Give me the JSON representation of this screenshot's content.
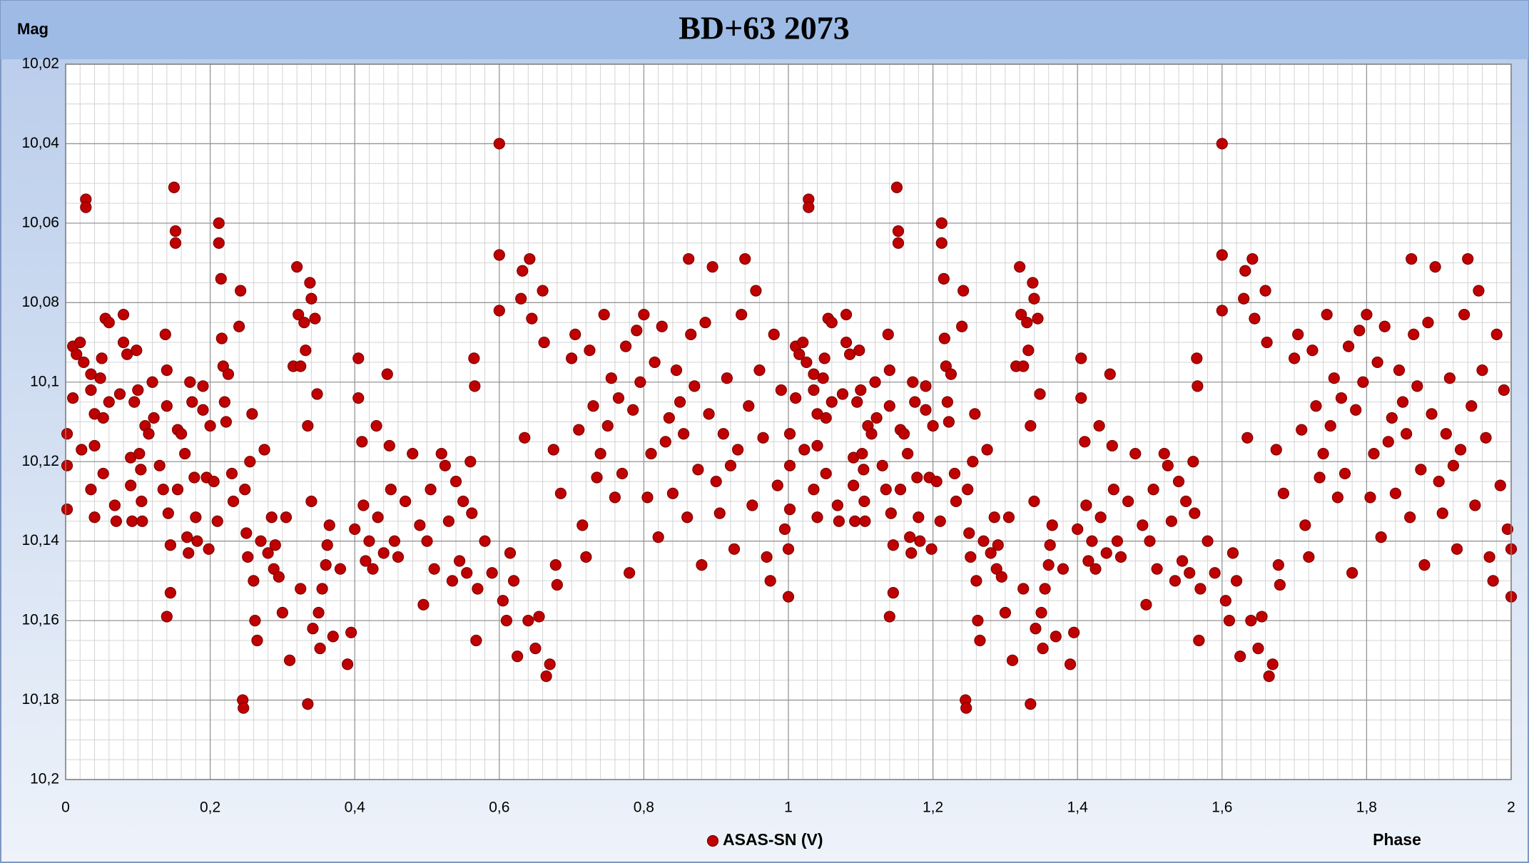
{
  "chart_data": {
    "type": "scatter",
    "title": "BD+63 2073",
    "ylabel": "Mag",
    "xlabel": "Phase",
    "xlim": [
      0,
      2
    ],
    "ylim": [
      10.2,
      10.02
    ],
    "grid": true,
    "minor_grid": true,
    "xticks": [
      0,
      {
        "value": 0.2,
        "label": "0,2"
      },
      {
        "value": 0.4,
        "label": "0,4"
      },
      {
        "value": 0.6,
        "label": "0,6"
      },
      {
        "value": 0.8,
        "label": "0,8"
      },
      1,
      {
        "value": 1.2,
        "label": "1,2"
      },
      {
        "value": 1.4,
        "label": "1,4"
      },
      {
        "value": 1.6,
        "label": "1,6"
      },
      {
        "value": 1.8,
        "label": "1,8"
      },
      2
    ],
    "yticks": [
      {
        "value": 10.02,
        "label": "10,02"
      },
      {
        "value": 10.04,
        "label": "10,04"
      },
      {
        "value": 10.06,
        "label": "10,06"
      },
      {
        "value": 10.08,
        "label": "10,08"
      },
      {
        "value": 10.1,
        "label": "10,1"
      },
      {
        "value": 10.12,
        "label": "10,12"
      },
      {
        "value": 10.14,
        "label": "10,14"
      },
      {
        "value": 10.16,
        "label": "10,16"
      },
      {
        "value": 10.18,
        "label": "10,18"
      },
      {
        "value": 10.2,
        "label": "10,2"
      }
    ],
    "legend": "bottom",
    "x": [
      0.002,
      0.002,
      0.002,
      0.01,
      0.01,
      0.015,
      0.02,
      0.022,
      0.025,
      0.028,
      0.028,
      0.035,
      0.035,
      0.04,
      0.04,
      0.035,
      0.04,
      0.048,
      0.05,
      0.052,
      0.052,
      0.055,
      0.06,
      0.06,
      0.068,
      0.07,
      0.075,
      0.08,
      0.08,
      0.085,
      0.09,
      0.09,
      0.092,
      0.095,
      0.098,
      0.1,
      0.102,
      0.104,
      0.105,
      0.106,
      0.11,
      0.115,
      0.12,
      0.122,
      0.13,
      0.135,
      0.138,
      0.14,
      0.14,
      0.142,
      0.145,
      0.14,
      0.145,
      0.15,
      0.152,
      0.152,
      0.155,
      0.155,
      0.16,
      0.165,
      0.168,
      0.17,
      0.172,
      0.175,
      0.178,
      0.18,
      0.182,
      0.19,
      0.19,
      0.195,
      0.198,
      0.2,
      0.205,
      0.21,
      0.212,
      0.212,
      0.215,
      0.216,
      0.218,
      0.22,
      0.222,
      0.225,
      0.23,
      0.232,
      0.24,
      0.242,
      0.245,
      0.246,
      0.248,
      0.25,
      0.252,
      0.255,
      0.258,
      0.26,
      0.262,
      0.265,
      0.27,
      0.275,
      0.28,
      0.285,
      0.288,
      0.29,
      0.295,
      0.3,
      0.305,
      0.31,
      0.315,
      0.32,
      0.322,
      0.325,
      0.325,
      0.33,
      0.332,
      0.335,
      0.335,
      0.338,
      0.34,
      0.34,
      0.342,
      0.345,
      0.348,
      0.35,
      0.352,
      0.355,
      0.36,
      0.362,
      0.365,
      0.37,
      0.38,
      0.39,
      0.395,
      0.4,
      0.405,
      0.405,
      0.41,
      0.412,
      0.415,
      0.42,
      0.425,
      0.43,
      0.432,
      0.44,
      0.445,
      0.448,
      0.45,
      0.455,
      0.46,
      0.47,
      0.48,
      0.49,
      0.495,
      0.5,
      0.505,
      0.51,
      0.52,
      0.525,
      0.53,
      0.535,
      0.54,
      0.545,
      0.55,
      0.555,
      0.56,
      0.562,
      0.565,
      0.566,
      0.568,
      0.57,
      0.58,
      0.59,
      0.6,
      0.6,
      0.6,
      0.605,
      0.61,
      0.615,
      0.62,
      0.625,
      0.63,
      0.632,
      0.635,
      0.64,
      0.642,
      0.645,
      0.65,
      0.655,
      0.66,
      0.662,
      0.665,
      0.67,
      0.675,
      0.678,
      0.68,
      0.685,
      0.7,
      0.705,
      0.71,
      0.715,
      0.72,
      0.725,
      0.73,
      0.735,
      0.74,
      0.745,
      0.75,
      0.755,
      0.76,
      0.765,
      0.77,
      0.775,
      0.78,
      0.785,
      0.79,
      0.795,
      0.8,
      0.805,
      0.81,
      0.815,
      0.82,
      0.825,
      0.83,
      0.835,
      0.84,
      0.845,
      0.85,
      0.855,
      0.86,
      0.862,
      0.865,
      0.87,
      0.875,
      0.88,
      0.885,
      0.89,
      0.895,
      0.9,
      0.905,
      0.91,
      0.915,
      0.92,
      0.925,
      0.93,
      0.935,
      0.94,
      0.945,
      0.95,
      0.955,
      0.96,
      0.965,
      0.97,
      0.975,
      0.98,
      0.985,
      0.99,
      0.995,
      1.0,
      1.0,
      1.002,
      1.002,
      1.002,
      1.01,
      1.01,
      1.015,
      1.02,
      1.022,
      1.025,
      1.028,
      1.028,
      1.035,
      1.035,
      1.04,
      1.04,
      1.035,
      1.04,
      1.048,
      1.05,
      1.052,
      1.052,
      1.055,
      1.06,
      1.06,
      1.068,
      1.07,
      1.075,
      1.08,
      1.08,
      1.085,
      1.09,
      1.09,
      1.092,
      1.095,
      1.098,
      1.1,
      1.102,
      1.104,
      1.105,
      1.106,
      1.11,
      1.115,
      1.12,
      1.122,
      1.13,
      1.135,
      1.138,
      1.14,
      1.14,
      1.142,
      1.145,
      1.14,
      1.145,
      1.15,
      1.152,
      1.152,
      1.155,
      1.155,
      1.16,
      1.165,
      1.168,
      1.17,
      1.172,
      1.175,
      1.178,
      1.18,
      1.182,
      1.19,
      1.19,
      1.195,
      1.198,
      1.2,
      1.205,
      1.21,
      1.212,
      1.212,
      1.215,
      1.216,
      1.218,
      1.22,
      1.222,
      1.225,
      1.23,
      1.232,
      1.24,
      1.242,
      1.245,
      1.246,
      1.248,
      1.25,
      1.252,
      1.255,
      1.258,
      1.26,
      1.262,
      1.265,
      1.27,
      1.275,
      1.28,
      1.285,
      1.288,
      1.29,
      1.295,
      1.3,
      1.305,
      1.31,
      1.315,
      1.32,
      1.322,
      1.325,
      1.325,
      1.33,
      1.332,
      1.335,
      1.335,
      1.338,
      1.34,
      1.34,
      1.342,
      1.345,
      1.348,
      1.35,
      1.352,
      1.355,
      1.36,
      1.362,
      1.365,
      1.37,
      1.38,
      1.39,
      1.395,
      1.4,
      1.405,
      1.405,
      1.41,
      1.412,
      1.415,
      1.42,
      1.425,
      1.43,
      1.432,
      1.44,
      1.445,
      1.448,
      1.45,
      1.455,
      1.46,
      1.47,
      1.48,
      1.49,
      1.495,
      1.5,
      1.505,
      1.51,
      1.52,
      1.525,
      1.53,
      1.535,
      1.54,
      1.545,
      1.55,
      1.555,
      1.56,
      1.562,
      1.565,
      1.566,
      1.568,
      1.57,
      1.58,
      1.59,
      1.6,
      1.6,
      1.6,
      1.605,
      1.61,
      1.615,
      1.62,
      1.625,
      1.63,
      1.632,
      1.635,
      1.64,
      1.642,
      1.645,
      1.65,
      1.655,
      1.66,
      1.662,
      1.665,
      1.67,
      1.675,
      1.678,
      1.68,
      1.685,
      1.7,
      1.705,
      1.71,
      1.715,
      1.72,
      1.725,
      1.73,
      1.735,
      1.74,
      1.745,
      1.75,
      1.755,
      1.76,
      1.765,
      1.77,
      1.775,
      1.78,
      1.785,
      1.79,
      1.795,
      1.8,
      1.805,
      1.81,
      1.815,
      1.82,
      1.825,
      1.83,
      1.835,
      1.84,
      1.845,
      1.85,
      1.855,
      1.86,
      1.862,
      1.865,
      1.87,
      1.875,
      1.88,
      1.885,
      1.89,
      1.895,
      1.9,
      1.905,
      1.91,
      1.915,
      1.92,
      1.925,
      1.93,
      1.935,
      1.94,
      1.945,
      1.95,
      1.955,
      1.96,
      1.965,
      1.97,
      1.975,
      1.98,
      1.985,
      1.99,
      1.995,
      2.0,
      2.0
    ],
    "series": [
      {
        "name": "ASAS-SN (V)",
        "color": "#c00000",
        "values": [
          10.113,
          10.121,
          10.132,
          10.091,
          10.104,
          10.093,
          10.09,
          10.117,
          10.095,
          10.054,
          10.056,
          10.098,
          10.102,
          10.108,
          10.116,
          10.127,
          10.134,
          10.099,
          10.094,
          10.109,
          10.123,
          10.084,
          10.085,
          10.105,
          10.131,
          10.135,
          10.103,
          10.09,
          10.083,
          10.093,
          10.119,
          10.126,
          10.135,
          10.105,
          10.092,
          10.102,
          10.118,
          10.122,
          10.13,
          10.135,
          10.111,
          10.113,
          10.1,
          10.109,
          10.121,
          10.127,
          10.088,
          10.097,
          10.106,
          10.133,
          10.141,
          10.159,
          10.153,
          10.051,
          10.062,
          10.065,
          10.112,
          10.127,
          10.113,
          10.118,
          10.139,
          10.143,
          10.1,
          10.105,
          10.124,
          10.134,
          10.14,
          10.101,
          10.107,
          10.124,
          10.142,
          10.111,
          10.125,
          10.135,
          10.06,
          10.065,
          10.074,
          10.089,
          10.096,
          10.105,
          10.11,
          10.098,
          10.123,
          10.13,
          10.086,
          10.077,
          10.18,
          10.182,
          10.127,
          10.138,
          10.144,
          10.12,
          10.108,
          10.15,
          10.16,
          10.165,
          10.14,
          10.117,
          10.143,
          10.134,
          10.147,
          10.141,
          10.149,
          10.158,
          10.134,
          10.17,
          10.096,
          10.071,
          10.083,
          10.096,
          10.152,
          10.085,
          10.092,
          10.111,
          10.181,
          10.075,
          10.079,
          10.13,
          10.162,
          10.084,
          10.103,
          10.158,
          10.167,
          10.152,
          10.146,
          10.141,
          10.136,
          10.164,
          10.147,
          10.171,
          10.163,
          10.137,
          10.094,
          10.104,
          10.115,
          10.131,
          10.145,
          10.14,
          10.147,
          10.111,
          10.134,
          10.143,
          10.098,
          10.116,
          10.127,
          10.14,
          10.144,
          10.13,
          10.118,
          10.136,
          10.156,
          10.14,
          10.127,
          10.147,
          10.118,
          10.121,
          10.135,
          10.15,
          10.125,
          10.145,
          10.13,
          10.148,
          10.12,
          10.133,
          10.094,
          10.101,
          10.165,
          10.152,
          10.14,
          10.148,
          10.04,
          10.082,
          10.068,
          10.155,
          10.16,
          10.143,
          10.15,
          10.169,
          10.079,
          10.072,
          10.114,
          10.16,
          10.069,
          10.084,
          10.167,
          10.159,
          10.077,
          10.09,
          10.174,
          10.171,
          10.117,
          10.146,
          10.151,
          10.128,
          10.094,
          10.088,
          10.112,
          10.136,
          10.144,
          10.092,
          10.106,
          10.124,
          10.118,
          10.083,
          10.111,
          10.099,
          10.129,
          10.104,
          10.123,
          10.091,
          10.148,
          10.107,
          10.087,
          10.1,
          10.083,
          10.129,
          10.118,
          10.095,
          10.139,
          10.086,
          10.115,
          10.109,
          10.128,
          10.097,
          10.105,
          10.113,
          10.134,
          10.069,
          10.088,
          10.101,
          10.122,
          10.146,
          10.085,
          10.108,
          10.071,
          10.125,
          10.133,
          10.113,
          10.099,
          10.121,
          10.142,
          10.117,
          10.083,
          10.069,
          10.106,
          10.131,
          10.077,
          10.097,
          10.114,
          10.144,
          10.15,
          10.088,
          10.126,
          10.102,
          10.137,
          10.154,
          10.142,
          10.113,
          10.121,
          10.132,
          10.091,
          10.104,
          10.093,
          10.09,
          10.117,
          10.095,
          10.054,
          10.056,
          10.098,
          10.102,
          10.108,
          10.116,
          10.127,
          10.134,
          10.099,
          10.094,
          10.109,
          10.123,
          10.084,
          10.085,
          10.105,
          10.131,
          10.135,
          10.103,
          10.09,
          10.083,
          10.093,
          10.119,
          10.126,
          10.135,
          10.105,
          10.092,
          10.102,
          10.118,
          10.122,
          10.13,
          10.135,
          10.111,
          10.113,
          10.1,
          10.109,
          10.121,
          10.127,
          10.088,
          10.097,
          10.106,
          10.133,
          10.141,
          10.159,
          10.153,
          10.051,
          10.062,
          10.065,
          10.112,
          10.127,
          10.113,
          10.118,
          10.139,
          10.143,
          10.1,
          10.105,
          10.124,
          10.134,
          10.14,
          10.101,
          10.107,
          10.124,
          10.142,
          10.111,
          10.125,
          10.135,
          10.06,
          10.065,
          10.074,
          10.089,
          10.096,
          10.105,
          10.11,
          10.098,
          10.123,
          10.13,
          10.086,
          10.077,
          10.18,
          10.182,
          10.127,
          10.138,
          10.144,
          10.12,
          10.108,
          10.15,
          10.16,
          10.165,
          10.14,
          10.117,
          10.143,
          10.134,
          10.147,
          10.141,
          10.149,
          10.158,
          10.134,
          10.17,
          10.096,
          10.071,
          10.083,
          10.096,
          10.152,
          10.085,
          10.092,
          10.111,
          10.181,
          10.075,
          10.079,
          10.13,
          10.162,
          10.084,
          10.103,
          10.158,
          10.167,
          10.152,
          10.146,
          10.141,
          10.136,
          10.164,
          10.147,
          10.171,
          10.163,
          10.137,
          10.094,
          10.104,
          10.115,
          10.131,
          10.145,
          10.14,
          10.147,
          10.111,
          10.134,
          10.143,
          10.098,
          10.116,
          10.127,
          10.14,
          10.144,
          10.13,
          10.118,
          10.136,
          10.156,
          10.14,
          10.127,
          10.147,
          10.118,
          10.121,
          10.135,
          10.15,
          10.125,
          10.145,
          10.13,
          10.148,
          10.12,
          10.133,
          10.094,
          10.101,
          10.165,
          10.152,
          10.14,
          10.148,
          10.04,
          10.082,
          10.068,
          10.155,
          10.16,
          10.143,
          10.15,
          10.169,
          10.079,
          10.072,
          10.114,
          10.16,
          10.069,
          10.084,
          10.167,
          10.159,
          10.077,
          10.09,
          10.174,
          10.171,
          10.117,
          10.146,
          10.151,
          10.128,
          10.094,
          10.088,
          10.112,
          10.136,
          10.144,
          10.092,
          10.106,
          10.124,
          10.118,
          10.083,
          10.111,
          10.099,
          10.129,
          10.104,
          10.123,
          10.091,
          10.148,
          10.107,
          10.087,
          10.1,
          10.083,
          10.129,
          10.118,
          10.095,
          10.139,
          10.086,
          10.115,
          10.109,
          10.128,
          10.097,
          10.105,
          10.113,
          10.134,
          10.069,
          10.088,
          10.101,
          10.122,
          10.146,
          10.085,
          10.108,
          10.071,
          10.125,
          10.133,
          10.113,
          10.099,
          10.121,
          10.142,
          10.117,
          10.083,
          10.069,
          10.106,
          10.131,
          10.077,
          10.097,
          10.114,
          10.144,
          10.15,
          10.088,
          10.126,
          10.102,
          10.137,
          10.154,
          10.142
        ]
      }
    ]
  }
}
